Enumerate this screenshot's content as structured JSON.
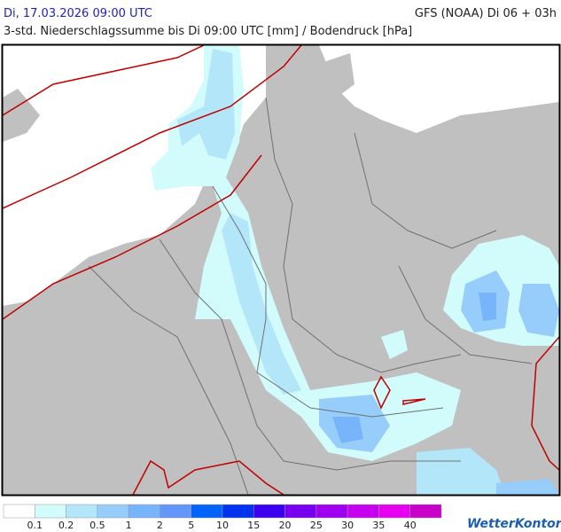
{
  "header": {
    "valid_time": "Di, 17.03.2026 09:00 UTC",
    "model_run": "GFS (NOAA) Di 06 + 03h",
    "subtitle": "3-std. Niederschlagssumme bis Di 09:00 UTC [mm] / Bodendruck [hPa]"
  },
  "legend": {
    "colors": [
      "#ffffff",
      "#d2fcfc",
      "#b4e6fa",
      "#96cdfa",
      "#78b4fa",
      "#6496fa",
      "#0064fa",
      "#0032f0",
      "#3c00f0",
      "#7800f0",
      "#a000f0",
      "#c800f0",
      "#e600f0",
      "#c800c8"
    ],
    "labels": [
      "0.1",
      "0.2",
      "0.5",
      "1",
      "2",
      "5",
      "10",
      "15",
      "20",
      "25",
      "30",
      "35",
      "40"
    ]
  },
  "logo": "WetterKontor"
}
